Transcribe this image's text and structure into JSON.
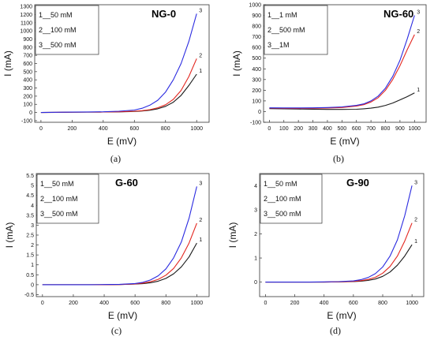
{
  "colors": {
    "1": "#1a1a1a",
    "2": "#e3261f",
    "3": "#2a2ae0"
  },
  "chart_data": [
    {
      "type": "line",
      "title": "NG-0",
      "caption": "(a)",
      "xlabel": "E (mV)",
      "ylabel": "I (mA)",
      "xlim": [
        -40,
        1080
      ],
      "ylim": [
        -120,
        1320
      ],
      "xticks": [
        0,
        200,
        400,
        600,
        800,
        1000
      ],
      "yticks": [
        -100,
        0,
        100,
        200,
        300,
        400,
        500,
        600,
        700,
        800,
        900,
        1000,
        1100,
        1200,
        1300
      ],
      "legend": [
        "1__50 mM",
        "2__100 mM",
        "3__500 mM"
      ],
      "legend_position": "top-left",
      "grid": false,
      "series": [
        {
          "name": "1__50 mM",
          "label": "1",
          "color_key": "1",
          "x": [
            0,
            100,
            200,
            300,
            400,
            500,
            600,
            650,
            700,
            750,
            800,
            850,
            900,
            950,
            1000
          ],
          "y": [
            0,
            2,
            4,
            5,
            6,
            8,
            12,
            18,
            28,
            45,
            75,
            125,
            210,
            330,
            470
          ]
        },
        {
          "name": "2__100 mM",
          "label": "2",
          "color_key": "2",
          "x": [
            0,
            100,
            200,
            300,
            400,
            500,
            600,
            650,
            700,
            750,
            800,
            850,
            900,
            950,
            1000
          ],
          "y": [
            0,
            2,
            4,
            5,
            6,
            9,
            15,
            22,
            35,
            58,
            95,
            160,
            270,
            440,
            660
          ]
        },
        {
          "name": "3__500 mM",
          "label": "3",
          "color_key": "3",
          "x": [
            0,
            100,
            200,
            300,
            400,
            500,
            600,
            650,
            700,
            750,
            800,
            850,
            900,
            950,
            1000
          ],
          "y": [
            0,
            3,
            5,
            7,
            9,
            15,
            30,
            52,
            90,
            150,
            250,
            400,
            600,
            870,
            1210
          ]
        }
      ]
    },
    {
      "type": "line",
      "title": "NG-60",
      "caption": "(b)",
      "xlabel": "E (mV)",
      "ylabel": "I (mA)",
      "xlim": [
        -40,
        1080
      ],
      "ylim": [
        -100,
        1000
      ],
      "xticks": [
        0,
        100,
        200,
        300,
        400,
        500,
        600,
        700,
        800,
        900,
        1000
      ],
      "yticks": [
        -100,
        0,
        100,
        200,
        300,
        400,
        500,
        600,
        700,
        800,
        900,
        1000
      ],
      "legend": [
        "1__1 mM",
        "2__500 mM",
        "3__1M"
      ],
      "legend_position": "top-left",
      "grid": false,
      "series": [
        {
          "name": "1__1 mM",
          "label": "1",
          "color_key": "1",
          "x": [
            0,
            100,
            200,
            300,
            400,
            500,
            600,
            650,
            700,
            750,
            800,
            850,
            900,
            950,
            1000
          ],
          "y": [
            28,
            26,
            24,
            22,
            20,
            20,
            22,
            26,
            32,
            42,
            58,
            80,
            110,
            140,
            175
          ]
        },
        {
          "name": "2__500 mM",
          "label": "2",
          "color_key": "2",
          "x": [
            0,
            100,
            200,
            300,
            400,
            500,
            600,
            650,
            700,
            750,
            800,
            850,
            900,
            950,
            1000
          ],
          "y": [
            32,
            31,
            30,
            31,
            33,
            38,
            52,
            65,
            90,
            130,
            200,
            300,
            430,
            580,
            720
          ]
        },
        {
          "name": "3__1M",
          "label": "3",
          "color_key": "3",
          "x": [
            0,
            100,
            200,
            300,
            400,
            500,
            600,
            650,
            700,
            750,
            800,
            850,
            900,
            950,
            1000
          ],
          "y": [
            35,
            34,
            34,
            35,
            38,
            44,
            58,
            72,
            100,
            145,
            220,
            330,
            480,
            680,
            900
          ]
        }
      ]
    },
    {
      "type": "line",
      "title": "G-60",
      "caption": "(c)",
      "xlabel": "E (mV)",
      "ylabel": "I (mA)",
      "xlim": [
        -40,
        1080
      ],
      "ylim": [
        -0.6,
        5.6
      ],
      "xticks": [
        0,
        200,
        400,
        600,
        800,
        1000
      ],
      "yticks": [
        -0.5,
        0.0,
        0.5,
        1.0,
        1.5,
        2.0,
        2.5,
        3.0,
        3.5,
        4.0,
        4.5,
        5.0,
        5.5
      ],
      "legend": [
        "1__50 mM",
        "2__100 mM",
        "3__500 mM"
      ],
      "legend_position": "top-left",
      "grid": false,
      "series": [
        {
          "name": "1__50 mM",
          "label": "1",
          "color_key": "1",
          "x": [
            0,
            100,
            200,
            300,
            400,
            500,
            600,
            650,
            700,
            750,
            800,
            850,
            900,
            950,
            1000
          ],
          "y": [
            0.0,
            0.0,
            0.0,
            0.0,
            0.0,
            0.01,
            0.03,
            0.05,
            0.1,
            0.18,
            0.32,
            0.55,
            0.9,
            1.4,
            2.1
          ]
        },
        {
          "name": "2__100 mM",
          "label": "2",
          "color_key": "2",
          "x": [
            0,
            100,
            200,
            300,
            400,
            500,
            600,
            650,
            700,
            750,
            800,
            850,
            900,
            950,
            1000
          ],
          "y": [
            0.0,
            0.0,
            0.0,
            0.0,
            0.0,
            0.01,
            0.04,
            0.08,
            0.15,
            0.27,
            0.48,
            0.82,
            1.35,
            2.1,
            3.1
          ]
        },
        {
          "name": "3__500 mM",
          "label": "3",
          "color_key": "3",
          "x": [
            0,
            100,
            200,
            300,
            400,
            500,
            600,
            650,
            700,
            750,
            800,
            850,
            900,
            950,
            1000
          ],
          "y": [
            0.0,
            0.0,
            0.0,
            0.0,
            0.01,
            0.02,
            0.06,
            0.12,
            0.24,
            0.45,
            0.8,
            1.35,
            2.15,
            3.35,
            4.95
          ]
        }
      ]
    },
    {
      "type": "line",
      "title": "G-90",
      "caption": "(d)",
      "xlabel": "E (mV)",
      "ylabel": "I (mA)",
      "xlim": [
        -40,
        1080
      ],
      "ylim": [
        -0.6,
        4.5
      ],
      "xticks": [
        0,
        200,
        400,
        600,
        800,
        1000
      ],
      "yticks": [
        0,
        1,
        2,
        3,
        4
      ],
      "legend": [
        "1__50 mM",
        "2__100 mM",
        "3__500 mM"
      ],
      "legend_position": "top-left",
      "grid": false,
      "series": [
        {
          "name": "1__50 mM",
          "label": "1",
          "color_key": "1",
          "x": [
            0,
            100,
            200,
            300,
            400,
            500,
            600,
            650,
            700,
            750,
            800,
            850,
            900,
            950,
            1000
          ],
          "y": [
            0.0,
            0.0,
            0.0,
            0.0,
            0.0,
            0.01,
            0.02,
            0.04,
            0.07,
            0.13,
            0.24,
            0.42,
            0.7,
            1.08,
            1.55
          ]
        },
        {
          "name": "2__100 mM",
          "label": "2",
          "color_key": "2",
          "x": [
            0,
            100,
            200,
            300,
            400,
            500,
            600,
            650,
            700,
            750,
            800,
            850,
            900,
            950,
            1000
          ],
          "y": [
            0.0,
            0.0,
            0.0,
            0.0,
            0.0,
            0.01,
            0.03,
            0.06,
            0.11,
            0.2,
            0.37,
            0.65,
            1.08,
            1.7,
            2.45
          ]
        },
        {
          "name": "3__500 mM",
          "label": "3",
          "color_key": "3",
          "x": [
            0,
            100,
            200,
            300,
            400,
            500,
            600,
            650,
            700,
            750,
            800,
            850,
            900,
            950,
            1000
          ],
          "y": [
            0.0,
            0.0,
            0.0,
            0.0,
            0.01,
            0.02,
            0.05,
            0.1,
            0.19,
            0.35,
            0.63,
            1.08,
            1.75,
            2.75,
            4.0
          ]
        }
      ]
    }
  ]
}
